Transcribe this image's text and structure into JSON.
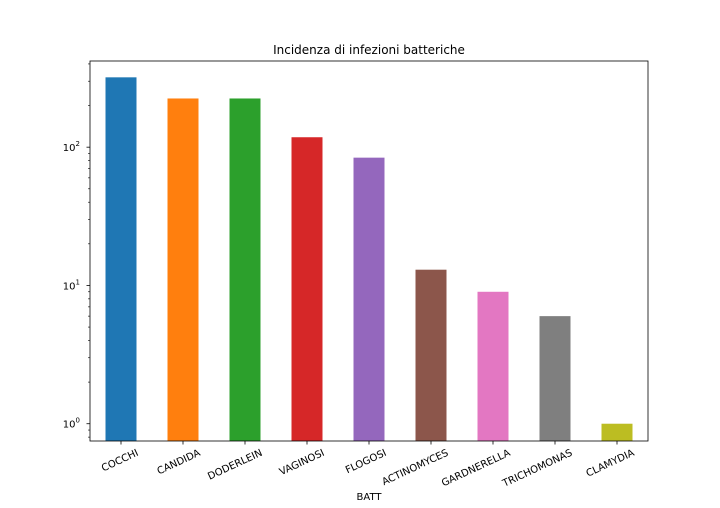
{
  "chart_data": {
    "type": "bar",
    "title": "Incidenza di infezioni batteriche",
    "xlabel": "BATT",
    "ylabel": "",
    "yscale": "log",
    "ylim": [
      0.75,
      420
    ],
    "yticks": [
      {
        "value": 1,
        "base": "10",
        "exp": "0"
      },
      {
        "value": 10,
        "base": "10",
        "exp": "1"
      },
      {
        "value": 100,
        "base": "10",
        "exp": "2"
      }
    ],
    "grid": false,
    "categories": [
      "COCCHI",
      "CANDIDA",
      "DODERLEIN",
      "VAGINOSI",
      "FLOGOSI",
      "ACTINOMYCES",
      "GARDNERELLA",
      "TRICHOMONAS",
      "CLAMYDIA"
    ],
    "values": [
      320,
      225,
      225,
      118,
      84,
      13,
      9,
      6,
      1
    ],
    "colors": [
      "#1f77b4",
      "#ff7f0e",
      "#2ca02c",
      "#d62728",
      "#9467bd",
      "#8c564b",
      "#e377c2",
      "#7f7f7f",
      "#bcbd22"
    ]
  }
}
